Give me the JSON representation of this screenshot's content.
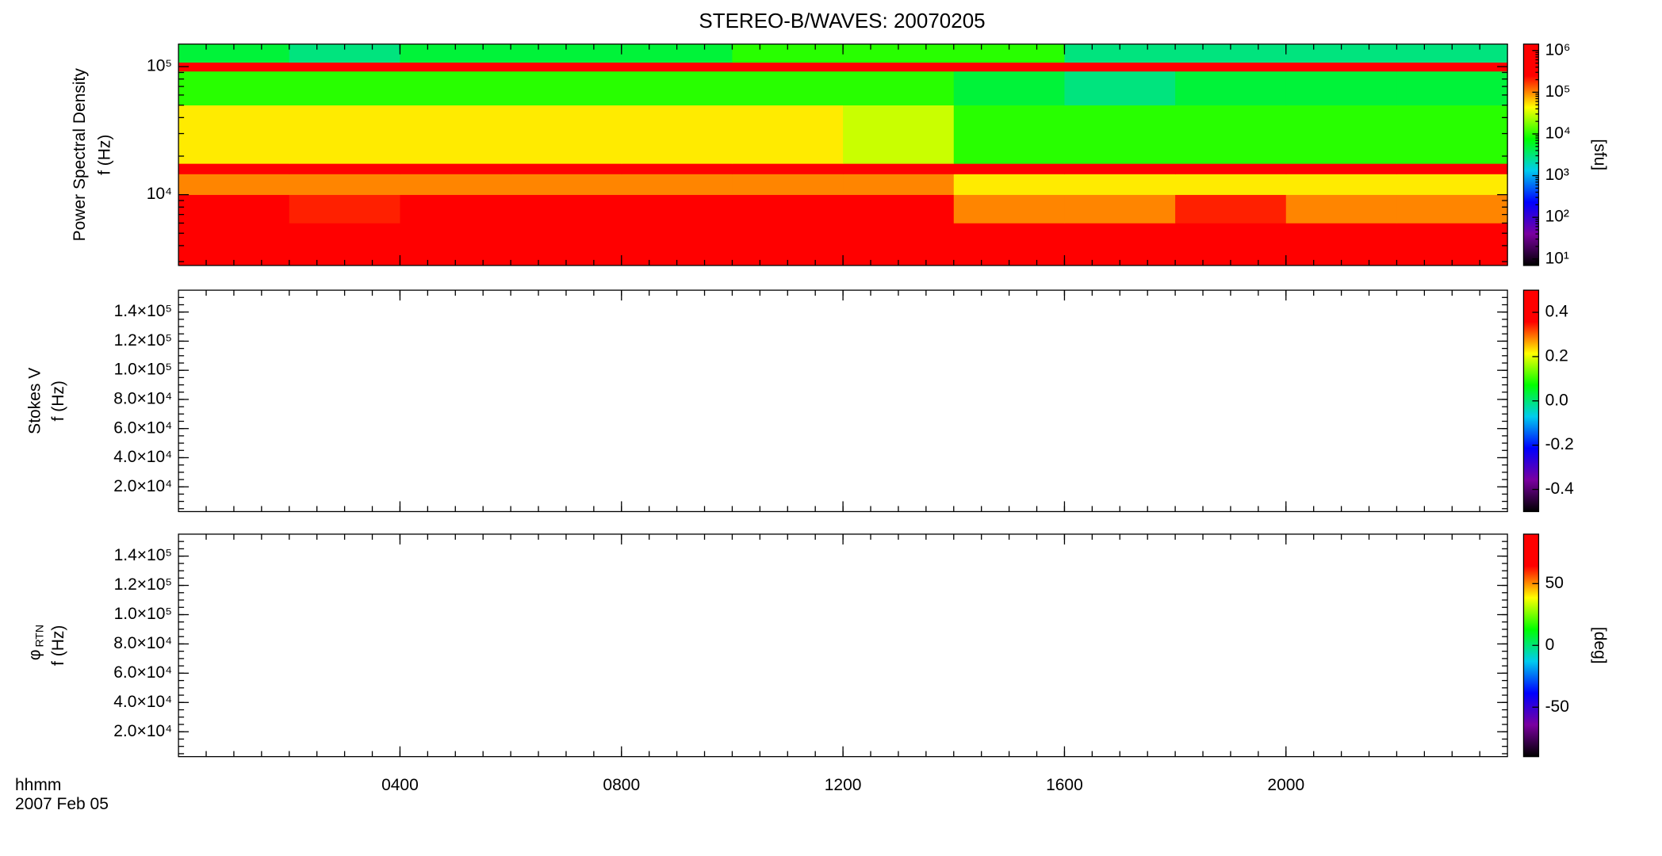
{
  "chart_data": {
    "type": "heatmap",
    "title": "STEREO-B/WAVES: 20070205",
    "xlabel": [
      "hhmm",
      "2007 Feb 05"
    ],
    "xlim": [
      0,
      24
    ],
    "xticks": [
      {
        "value": 4,
        "label": "0400"
      },
      {
        "value": 8,
        "label": "0800"
      },
      {
        "value": 12,
        "label": "1200"
      },
      {
        "value": 16,
        "label": "1600"
      },
      {
        "value": 20,
        "label": "2000"
      }
    ],
    "x_minor_step": 0.5,
    "colormap": [
      "#000000",
      "#7a00a0",
      "#0000ff",
      "#00ccee",
      "#00ff00",
      "#ffff00",
      "#ff0000",
      "#ff0000"
    ],
    "panels": [
      {
        "type": "heatmap",
        "ylabel": [
          "Power Spectral Density",
          "f (Hz)"
        ],
        "ylog": true,
        "ylim": [
          2800,
          150000
        ],
        "yticks": [
          {
            "value": 10000,
            "label": "10⁴"
          },
          {
            "value": 100000,
            "label": "10⁵"
          }
        ],
        "x_bins": [
          0,
          2,
          4,
          6,
          8,
          10,
          12,
          14,
          16,
          18,
          20,
          22,
          24
        ],
        "y_bins": [
          2800,
          6000,
          10000,
          14500,
          17500,
          50000,
          92000,
          108000,
          150000
        ],
        "values": [
          [
            1000000,
            1000000,
            500000,
            1000000,
            1000000,
            1000000,
            1000000,
            300000,
            300000,
            500000,
            300000,
            300000
          ],
          [
            300000,
            200000,
            300000,
            500000,
            500000,
            500000,
            1000000,
            100000,
            100000,
            200000,
            100000,
            100000
          ],
          [
            100000,
            100000,
            100000,
            100000,
            100000,
            100000,
            100000,
            50000,
            50000,
            50000,
            50000,
            50000
          ],
          [
            1000000,
            1000000,
            1000000,
            1000000,
            1000000,
            1000000,
            1000000,
            1000000,
            1000000,
            1000000,
            1000000,
            1000000
          ],
          [
            50000,
            50000,
            50000,
            50000,
            50000,
            50000,
            30000,
            10000,
            10000,
            10000,
            10000,
            10000
          ],
          [
            10000,
            10000,
            10000,
            10000,
            10000,
            10000,
            10000,
            5000,
            3000,
            5000,
            5000,
            5000
          ],
          [
            1000000,
            1000000,
            1000000,
            1000000,
            1000000,
            1000000,
            1000000,
            1000000,
            1000000,
            1000000,
            1000000,
            1000000
          ],
          [
            5000,
            3000,
            5000,
            5000,
            5000,
            10000,
            10000,
            10000,
            3000,
            3000,
            3000,
            3000
          ]
        ],
        "clog": true,
        "clim": [
          7,
          1430000
        ],
        "cticks": [
          {
            "value": 10,
            "label": "10¹"
          },
          {
            "value": 100,
            "label": "10²"
          },
          {
            "value": 1000,
            "label": "10³"
          },
          {
            "value": 10000,
            "label": "10⁴"
          },
          {
            "value": 100000,
            "label": "10⁵"
          },
          {
            "value": 1000000,
            "label": "10⁶"
          }
        ],
        "clabel": "[sfu]"
      },
      {
        "type": "heatmap",
        "ylabel": [
          "Stokes V",
          "f (Hz)"
        ],
        "ylog": false,
        "ylim": [
          3000,
          155000
        ],
        "y_minor_step": 5000,
        "yticks": [
          {
            "value": 20000,
            "label": "2.0×10⁴"
          },
          {
            "value": 40000,
            "label": "4.0×10⁴"
          },
          {
            "value": 60000,
            "label": "6.0×10⁴"
          },
          {
            "value": 80000,
            "label": "8.0×10⁴"
          },
          {
            "value": 100000,
            "label": "1.0×10⁵"
          },
          {
            "value": 120000,
            "label": "1.2×10⁵"
          },
          {
            "value": 140000,
            "label": "1.4×10⁵"
          }
        ],
        "clog": false,
        "clim": [
          -0.5,
          0.5
        ],
        "cticks": [
          -0.4,
          -0.2,
          {
            "value": 0,
            "label": "0.0"
          },
          0.2,
          0.4
        ]
      },
      {
        "type": "heatmap",
        "ylabel": [
          "φ",
          "f (Hz)"
        ],
        "ylabel_sub": "RTN",
        "ylog": false,
        "ylim": [
          3000,
          155000
        ],
        "y_minor_step": 5000,
        "yticks": [
          {
            "value": 20000,
            "label": "2.0×10⁴"
          },
          {
            "value": 40000,
            "label": "4.0×10⁴"
          },
          {
            "value": 60000,
            "label": "6.0×10⁴"
          },
          {
            "value": 80000,
            "label": "8.0×10⁴"
          },
          {
            "value": 100000,
            "label": "1.0×10⁵"
          },
          {
            "value": 120000,
            "label": "1.2×10⁵"
          },
          {
            "value": 140000,
            "label": "1.4×10⁵"
          }
        ],
        "clog": false,
        "clim": [
          -90,
          90
        ],
        "cticks": [
          -50,
          0,
          50
        ],
        "clabel": "[deg]"
      }
    ]
  }
}
